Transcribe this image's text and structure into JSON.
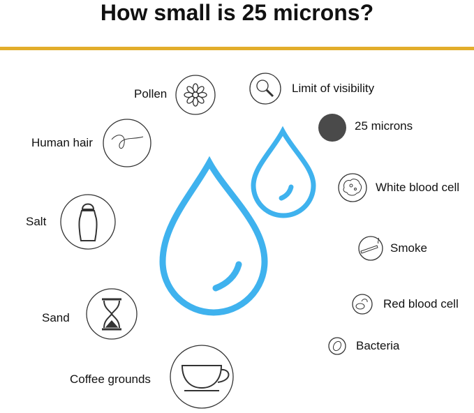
{
  "title": "How small is 25 microns?",
  "colors": {
    "accent_rule": "#e2ad2b",
    "drop": "#3fb2ee",
    "dot_25_microns": "#4a4a4a",
    "icon_stroke": "#333333"
  },
  "items": [
    {
      "label": "Pollen",
      "icon": "flower-icon"
    },
    {
      "label": "Limit of visibility",
      "icon": "magnifier-icon"
    },
    {
      "label": "25 microns",
      "icon": "filled-dot-icon"
    },
    {
      "label": "Human hair",
      "icon": "hair-strand-icon"
    },
    {
      "label": "White blood cell",
      "icon": "white-cell-icon"
    },
    {
      "label": "Salt",
      "icon": "salt-shaker-icon"
    },
    {
      "label": "Smoke",
      "icon": "cigarette-icon"
    },
    {
      "label": "Red blood cell",
      "icon": "red-cell-icon"
    },
    {
      "label": "Sand",
      "icon": "hourglass-icon"
    },
    {
      "label": "Bacteria",
      "icon": "bacteria-icon"
    },
    {
      "label": "Coffee grounds",
      "icon": "coffee-cup-icon"
    }
  ]
}
